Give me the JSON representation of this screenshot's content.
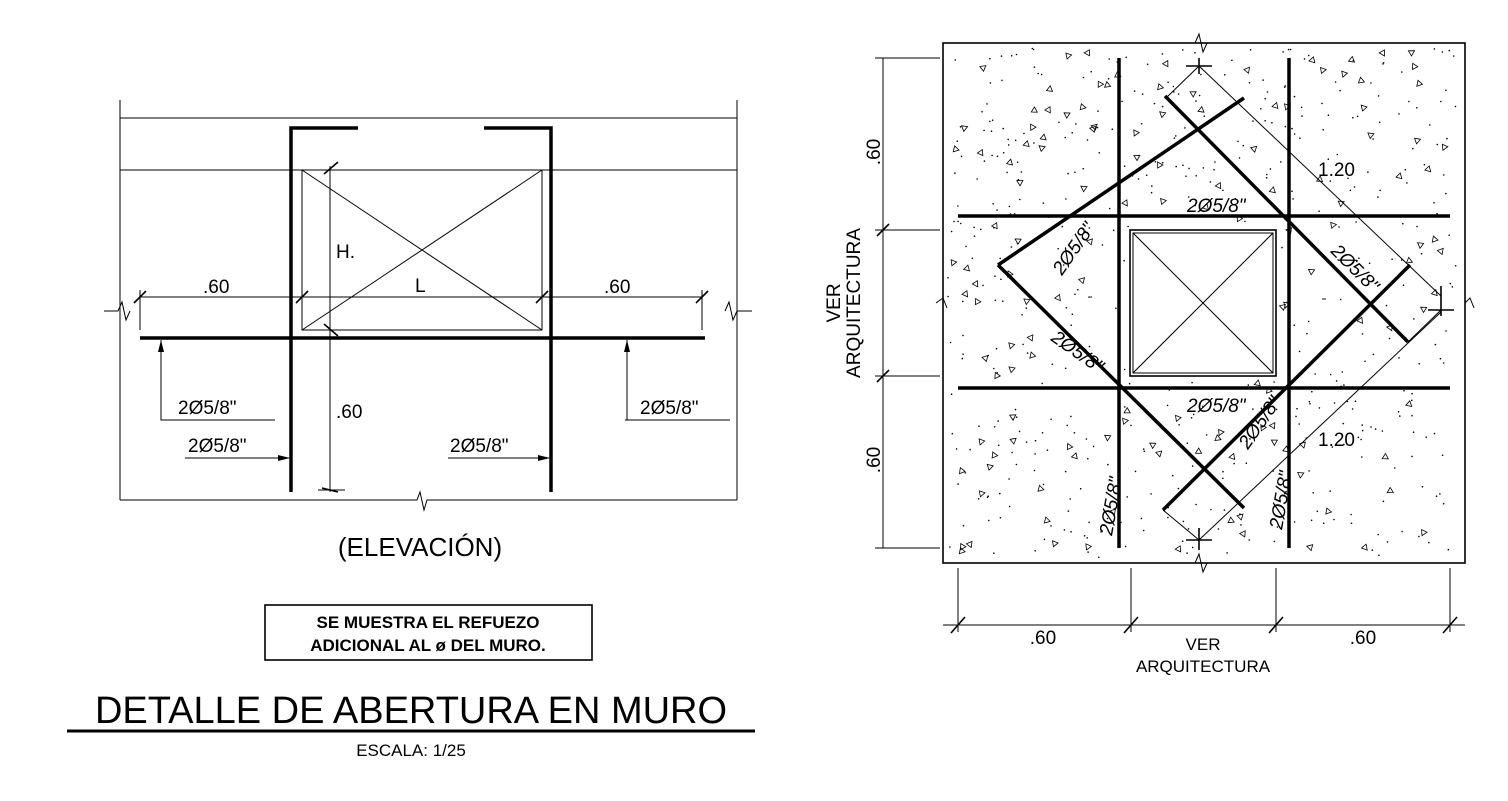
{
  "elevation": {
    "dim_left": ".60",
    "dim_right": ".60",
    "dim_vertical": ".60",
    "h_label": "H.",
    "l_label": "L",
    "bar_left_upper": "2Ø5/8\"",
    "bar_left_lower": "2Ø5/8\"",
    "bar_right_upper": "2Ø5/8\"",
    "bar_right_lower": "2Ø5/8\"",
    "caption": "(ELEVACIÓN)"
  },
  "note": {
    "line1": "SE MUESTRA EL REFUEZO",
    "line2": "ADICIONAL AL ø DEL MURO."
  },
  "title": {
    "main": "DETALLE DE ABERTURA EN MURO",
    "scale": "ESCALA:  1/25"
  },
  "plan": {
    "dim_top_left": ".60",
    "dim_bottom_left": ".60",
    "side_label_1": "VER",
    "side_label_2": "ARQUITECTURA",
    "dim_bottom_1": ".60",
    "dim_bottom_2": ".60",
    "bottom_label_1": "VER",
    "bottom_label_2": "ARQUITECTURA",
    "diag_dim_upper": "1.20",
    "diag_dim_lower": "1.20",
    "bar_top": "2Ø5/8\"",
    "bar_bottom": "2Ø5/8\"",
    "bar_ul": "2Ø5/8\"",
    "bar_ll": "2Ø5/8\"",
    "bar_ur": "2Ø5/8\"",
    "bar_lr": "2Ø5/8\"",
    "bar_left_vert": "2Ø5/8\"",
    "bar_right_vert": "2Ø5/8\""
  }
}
